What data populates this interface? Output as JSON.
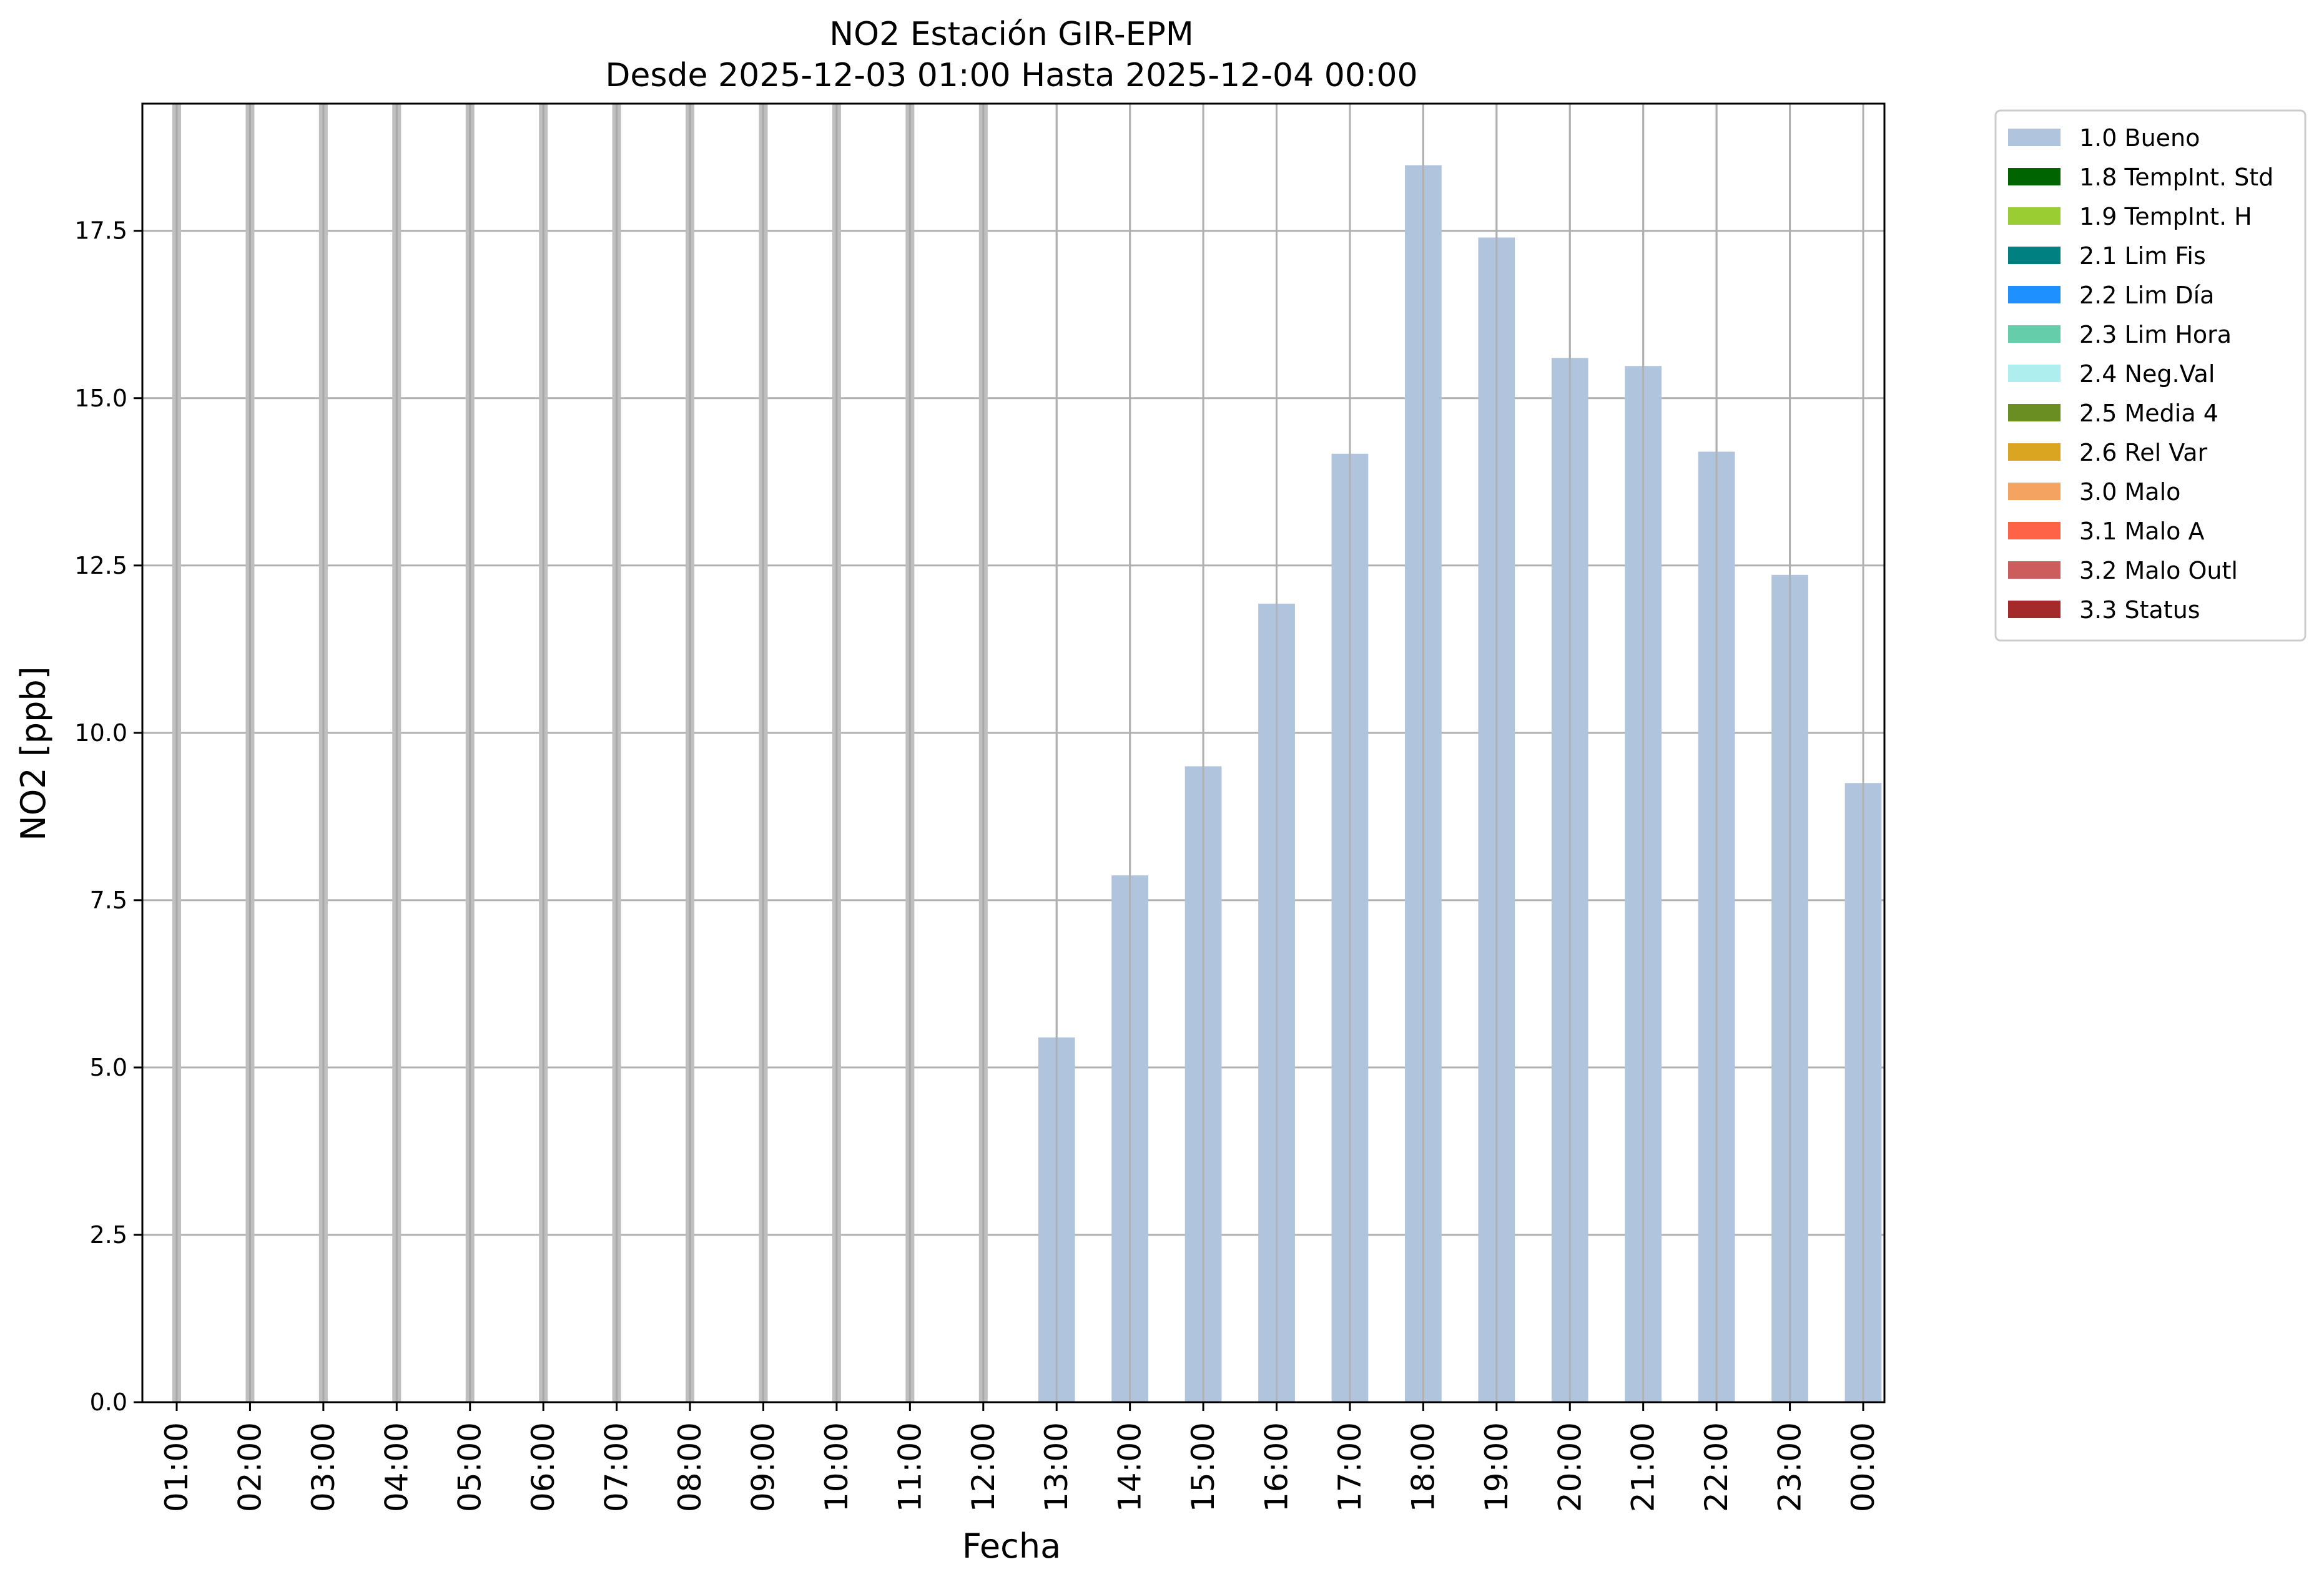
{
  "chart_data": {
    "type": "bar",
    "title": "NO2 Estación GIR-EPM",
    "subtitle": "Desde 2025-12-03 01:00 Hasta 2025-12-04 00:00",
    "xlabel": "Fecha",
    "ylabel": "NO2 [ppb]",
    "ylim": [
      0,
      19.4
    ],
    "yticks": [
      "0.0",
      "2.5",
      "5.0",
      "7.5",
      "10.0",
      "12.5",
      "15.0",
      "17.5"
    ],
    "ytick_values": [
      0,
      2.5,
      5,
      7.5,
      10,
      12.5,
      15,
      17.5
    ],
    "grid": true,
    "legend_position": "outside-top-right",
    "categories": [
      "01:00",
      "02:00",
      "03:00",
      "04:00",
      "05:00",
      "06:00",
      "07:00",
      "08:00",
      "09:00",
      "10:00",
      "11:00",
      "12:00",
      "13:00",
      "14:00",
      "15:00",
      "16:00",
      "17:00",
      "18:00",
      "19:00",
      "20:00",
      "21:00",
      "22:00",
      "23:00",
      "00:00"
    ],
    "missing_marker_color": "#bfbfbf",
    "series": [
      {
        "name": "1.0 Bueno",
        "color": "#b0c4de",
        "values": [
          null,
          null,
          null,
          null,
          null,
          null,
          null,
          null,
          null,
          null,
          null,
          null,
          5.45,
          7.87,
          9.5,
          11.93,
          14.17,
          18.48,
          17.4,
          15.6,
          15.48,
          14.2,
          12.36,
          9.25
        ]
      }
    ],
    "legend": [
      {
        "label": "1.0 Bueno",
        "color": "#b0c4de"
      },
      {
        "label": "1.8 TempInt. Std",
        "color": "#006400"
      },
      {
        "label": "1.9 TempInt. H",
        "color": "#9acd32"
      },
      {
        "label": "2.1 Lim Fis",
        "color": "#008080"
      },
      {
        "label": "2.2 Lim Día",
        "color": "#1e90ff"
      },
      {
        "label": "2.3 Lim Hora",
        "color": "#66cdaa"
      },
      {
        "label": "2.4 Neg.Val",
        "color": "#afeeee"
      },
      {
        "label": "2.5 Media 4",
        "color": "#6b8e23"
      },
      {
        "label": "2.6 Rel Var",
        "color": "#daa520"
      },
      {
        "label": "3.0 Malo",
        "color": "#f4a460"
      },
      {
        "label": "3.1 Malo A",
        "color": "#ff6347"
      },
      {
        "label": "3.2 Malo Outl",
        "color": "#cd5c5c"
      },
      {
        "label": "3.3 Status",
        "color": "#a52a2a"
      }
    ]
  }
}
